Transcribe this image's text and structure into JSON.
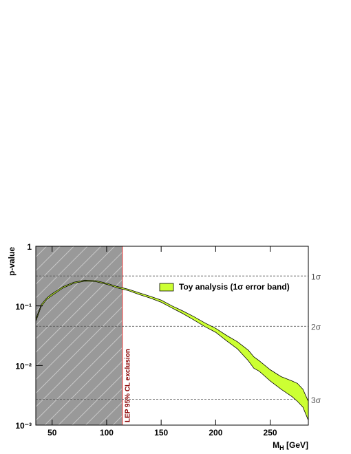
{
  "chart_data": {
    "type": "band",
    "y_label": "p-value",
    "x_label": "M_H [GeV]",
    "xlim": [
      35,
      285
    ],
    "xticks": [
      50,
      100,
      150,
      200,
      250
    ],
    "ylim": [
      0.001,
      1
    ],
    "log_y": true,
    "yticks": [
      1,
      {
        "value": 0.1,
        "label": "10⁻¹"
      },
      {
        "value": 0.01,
        "label": "10⁻²"
      },
      {
        "value": 0.001,
        "label": "10⁻³"
      }
    ],
    "sigma_lines": [
      {
        "value": 0.3173,
        "label": "1σ"
      },
      {
        "value": 0.0455,
        "label": "2σ"
      },
      {
        "value": 0.0027,
        "label": "3σ"
      }
    ],
    "exclusion": {
      "limit": 114.4,
      "label": "LEP 95% CL exclusion"
    },
    "band": {
      "name": "Toy analysis (1σ error band)",
      "color": "#ccff33",
      "x": [
        35,
        40,
        45,
        50,
        60,
        70,
        80,
        90,
        100,
        110,
        120,
        130,
        140,
        150,
        160,
        170,
        180,
        190,
        200,
        210,
        220,
        230,
        235,
        240,
        250,
        260,
        270,
        275,
        280,
        285
      ],
      "upper": [
        0.06,
        0.105,
        0.135,
        0.16,
        0.21,
        0.25,
        0.27,
        0.265,
        0.24,
        0.21,
        0.19,
        0.165,
        0.145,
        0.125,
        0.1,
        0.082,
        0.066,
        0.052,
        0.042,
        0.032,
        0.025,
        0.018,
        0.014,
        0.012,
        0.0085,
        0.0065,
        0.0055,
        0.005,
        0.004,
        0.0025
      ],
      "lower": [
        0.055,
        0.098,
        0.127,
        0.15,
        0.2,
        0.24,
        0.26,
        0.255,
        0.23,
        0.2,
        0.18,
        0.155,
        0.135,
        0.115,
        0.092,
        0.074,
        0.058,
        0.045,
        0.036,
        0.026,
        0.019,
        0.012,
        0.009,
        0.008,
        0.0055,
        0.004,
        0.003,
        0.0025,
        0.002,
        0.0012
      ]
    },
    "legend": "top-right"
  }
}
